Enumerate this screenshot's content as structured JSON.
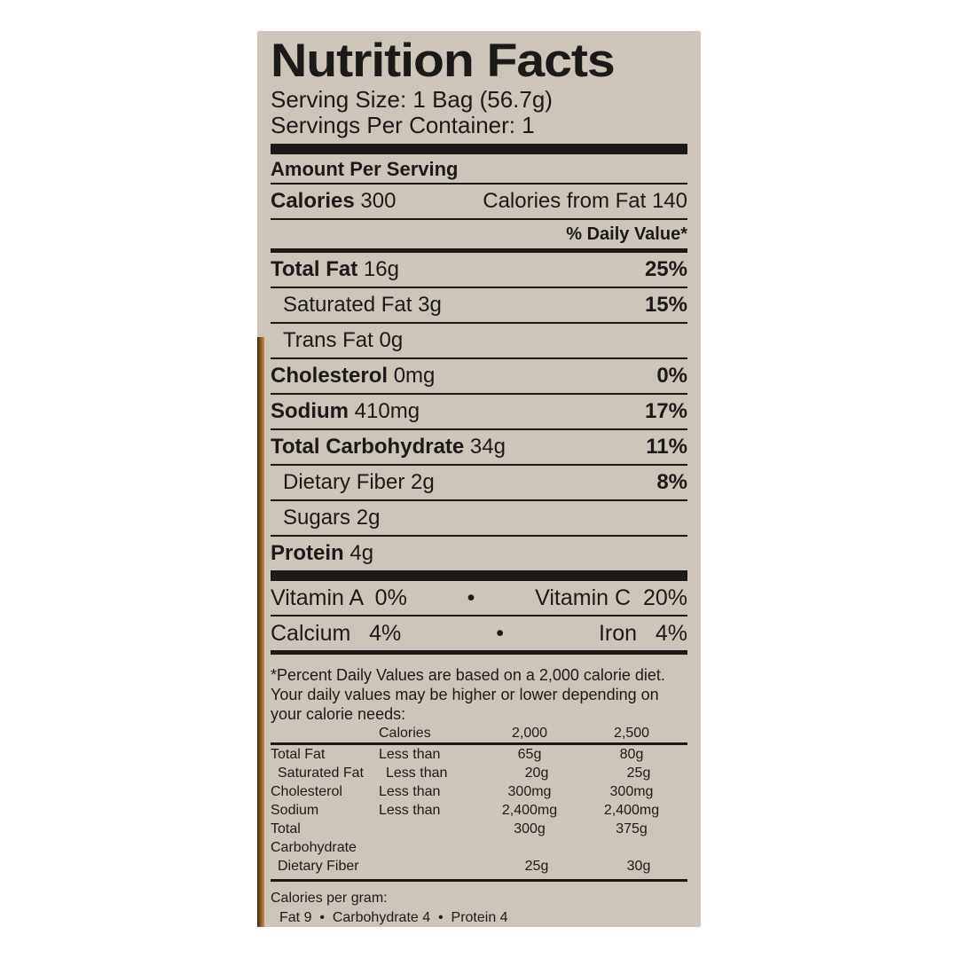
{
  "title": "Nutrition Facts",
  "serving_size": "Serving Size: 1 Bag (56.7g)",
  "servings_per_container": "Servings Per Container: 1",
  "amount_per_serving": "Amount Per Serving",
  "calories": {
    "label": "Calories",
    "value": "300",
    "from_fat": "Calories from Fat 140"
  },
  "daily_value_header": "% Daily Value*",
  "nutrients": [
    {
      "name": "Total Fat",
      "amount": "16g",
      "dv": "25%",
      "bold": true,
      "indent": false
    },
    {
      "name": "Saturated Fat",
      "amount": "3g",
      "dv": "15%",
      "bold": false,
      "indent": true
    },
    {
      "name": "Trans Fat",
      "amount": "0g",
      "dv": "",
      "bold": false,
      "indent": true
    },
    {
      "name": "Cholesterol",
      "amount": "0mg",
      "dv": "0%",
      "bold": true,
      "indent": false
    },
    {
      "name": "Sodium",
      "amount": "410mg",
      "dv": "17%",
      "bold": true,
      "indent": false
    },
    {
      "name": "Total Carbohydrate",
      "amount": "34g",
      "dv": "11%",
      "bold": true,
      "indent": false
    },
    {
      "name": "Dietary Fiber",
      "amount": "2g",
      "dv": "8%",
      "bold": false,
      "indent": true
    },
    {
      "name": "Sugars",
      "amount": "2g",
      "dv": "",
      "bold": false,
      "indent": true
    },
    {
      "name": "Protein",
      "amount": "4g",
      "dv": "",
      "bold": true,
      "indent": false
    }
  ],
  "vitamins": [
    {
      "left": "Vitamin A  0%",
      "right": "Vitamin C  20%"
    },
    {
      "left": "Calcium   4%",
      "right": "Iron   4%"
    }
  ],
  "bullet": "•",
  "footnote": "*Percent Daily Values are based on a 2,000 calorie diet. Your daily values may be higher or lower depending on your calorie needs:",
  "reference_table": {
    "header": [
      "",
      "Calories",
      "2,000",
      "2,500"
    ],
    "rows": [
      [
        "Total Fat",
        "Less than",
        "65g",
        "80g"
      ],
      [
        "Saturated Fat",
        "Less than",
        "20g",
        "25g"
      ],
      [
        "Cholesterol",
        "Less than",
        "300mg",
        "300mg"
      ],
      [
        "Sodium",
        "Less than",
        "2,400mg",
        "2,400mg"
      ],
      [
        "Total Carbohydrate",
        "",
        "300g",
        "375g"
      ],
      [
        "Dietary Fiber",
        "",
        "25g",
        "30g"
      ]
    ]
  },
  "calories_per_gram": {
    "label": "Calories per gram:",
    "values": "Fat 9  •  Carbohydrate 4  •  Protein 4"
  }
}
